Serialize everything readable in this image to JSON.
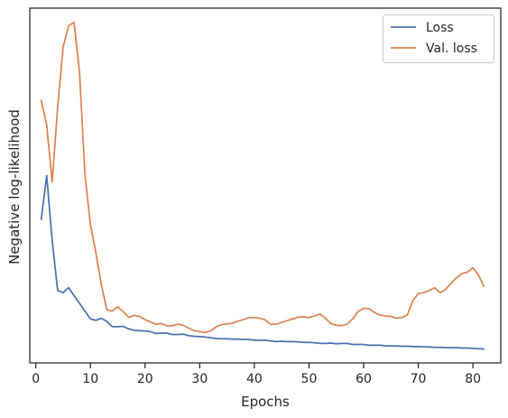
{
  "chart_data": {
    "type": "line",
    "xlabel": "Epochs",
    "ylabel": "Negative log-likelihood",
    "xlim": [
      -1.1,
      85.1
    ],
    "ylim": [
      0,
      100
    ],
    "xticks": [
      0,
      10,
      20,
      30,
      40,
      50,
      60,
      70,
      80
    ],
    "yticks_labeled": false,
    "grid": false,
    "legend_position": "upper right",
    "series": [
      {
        "name": "Loss",
        "color": "#4c72b0",
        "x": [
          1,
          2,
          3,
          4,
          5,
          6,
          7,
          8,
          9,
          10,
          11,
          12,
          13,
          14,
          15,
          16,
          17,
          18,
          19,
          20,
          21,
          22,
          23,
          24,
          25,
          26,
          27,
          28,
          29,
          30,
          31,
          32,
          33,
          34,
          35,
          36,
          37,
          38,
          39,
          40,
          41,
          42,
          43,
          44,
          45,
          46,
          47,
          48,
          49,
          50,
          51,
          52,
          53,
          54,
          55,
          56,
          57,
          58,
          59,
          60,
          61,
          62,
          63,
          64,
          65,
          66,
          67,
          68,
          69,
          70,
          71,
          72,
          73,
          74,
          75,
          76,
          77,
          78,
          79,
          80,
          81,
          82
        ],
        "y": [
          40.5,
          52.8,
          34.5,
          20.4,
          19.8,
          21.2,
          19.0,
          16.8,
          14.6,
          12.4,
          12.0,
          12.6,
          11.7,
          10.2,
          10.2,
          10.3,
          9.6,
          9.2,
          9.1,
          9.0,
          8.8,
          8.3,
          8.4,
          8.4,
          8.0,
          8.0,
          8.1,
          7.7,
          7.5,
          7.4,
          7.3,
          7.1,
          6.9,
          6.8,
          6.8,
          6.7,
          6.7,
          6.6,
          6.6,
          6.4,
          6.4,
          6.4,
          6.2,
          6.0,
          6.1,
          6.0,
          6.0,
          5.9,
          5.8,
          5.8,
          5.7,
          5.5,
          5.5,
          5.6,
          5.4,
          5.5,
          5.5,
          5.2,
          5.2,
          5.2,
          5.0,
          5.0,
          5.0,
          4.8,
          4.8,
          4.8,
          4.7,
          4.7,
          4.6,
          4.6,
          4.5,
          4.5,
          4.4,
          4.4,
          4.3,
          4.3,
          4.3,
          4.2,
          4.2,
          4.1,
          4.0,
          3.9
        ]
      },
      {
        "name": "Val. loss",
        "color": "#dd8452",
        "x": [
          1,
          2,
          3,
          4,
          5,
          6,
          7,
          8,
          9,
          10,
          11,
          12,
          13,
          14,
          15,
          16,
          17,
          18,
          19,
          20,
          21,
          22,
          23,
          24,
          25,
          26,
          27,
          28,
          29,
          30,
          31,
          32,
          33,
          34,
          35,
          36,
          37,
          38,
          39,
          40,
          41,
          42,
          43,
          44,
          45,
          46,
          47,
          48,
          49,
          50,
          51,
          52,
          53,
          54,
          55,
          56,
          57,
          58,
          59,
          60,
          61,
          62,
          63,
          64,
          65,
          66,
          67,
          68,
          69,
          70,
          71,
          72,
          73,
          74,
          75,
          76,
          77,
          78,
          79,
          80,
          81,
          82
        ],
        "y": [
          74.0,
          67.0,
          51.0,
          72.0,
          89.0,
          95.0,
          96.0,
          82.0,
          53.0,
          39.0,
          31.0,
          22.0,
          15.0,
          14.6,
          15.8,
          14.5,
          12.8,
          13.4,
          13.1,
          12.2,
          11.5,
          10.9,
          11.1,
          10.4,
          10.5,
          10.9,
          10.6,
          9.8,
          9.1,
          8.8,
          8.6,
          9.0,
          10.2,
          10.8,
          11.0,
          11.2,
          11.8,
          12.2,
          12.8,
          12.8,
          12.6,
          12.1,
          10.9,
          10.9,
          11.4,
          11.9,
          12.4,
          12.9,
          13.0,
          12.8,
          13.2,
          13.8,
          12.6,
          11.1,
          10.6,
          10.5,
          11.0,
          12.4,
          14.5,
          15.4,
          15.3,
          14.2,
          13.5,
          13.2,
          13.1,
          12.6,
          12.8,
          13.5,
          17.5,
          19.6,
          19.8,
          20.4,
          21.2,
          19.8,
          20.7,
          22.5,
          24.0,
          25.2,
          25.6,
          26.8,
          24.8,
          21.6
        ]
      }
    ]
  }
}
